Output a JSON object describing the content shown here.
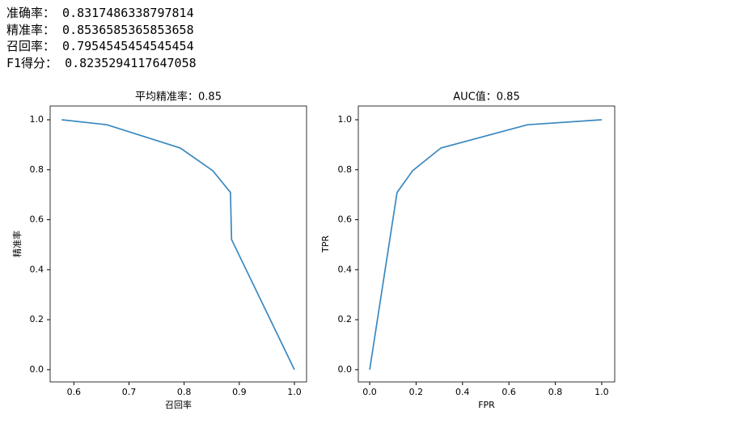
{
  "output_lines": [
    {
      "label": "准确率：",
      "value": "0.8317486338797814"
    },
    {
      "label": "精准率：",
      "value": "0.8536585365853658"
    },
    {
      "label": "召回率：",
      "value": "0.7954545454545454"
    },
    {
      "label": "F1得分：",
      "value": "0.8235294117647058"
    }
  ],
  "chart_data": [
    {
      "type": "line",
      "title": "平均精准率：0.85",
      "x_label": "召回率",
      "y_label": "精准率",
      "x": [
        0.578,
        0.66,
        0.793,
        0.852,
        0.884,
        0.886,
        1.0
      ],
      "series": [
        {
          "color": "#3a88c0",
          "values": [
            1.0,
            0.98,
            0.887,
            0.796,
            0.709,
            0.521,
            0.0
          ]
        }
      ],
      "xlim": [
        0.557,
        1.022
      ],
      "ylim": [
        -0.049,
        1.055
      ],
      "xticks": [
        0.6,
        0.7,
        0.8,
        0.9,
        {
          "value": 1,
          "label": "1.0"
        }
      ],
      "yticks": [
        {
          "value": 0,
          "label": "0.0"
        },
        0.2,
        0.4,
        0.6,
        0.8,
        {
          "value": 1,
          "label": "1.0"
        }
      ]
    },
    {
      "type": "line",
      "title": "AUC值：0.85",
      "x_label": "FPR",
      "y_label": "TPR",
      "x": [
        0,
        0.118,
        0.185,
        0.307,
        0.68,
        1.0
      ],
      "series": [
        {
          "color": "#3a88c0",
          "values": [
            0.0,
            0.709,
            0.796,
            0.887,
            0.98,
            1.0
          ]
        }
      ],
      "xlim": [
        -0.049,
        1.056
      ],
      "ylim": [
        -0.049,
        1.055
      ],
      "xticks": [
        {
          "value": 0,
          "label": "0.0"
        },
        0.2,
        0.4,
        0.6,
        0.8,
        {
          "value": 1,
          "label": "1.0"
        }
      ],
      "yticks": [
        {
          "value": 0,
          "label": "0.0"
        },
        0.2,
        0.4,
        0.6,
        0.8,
        {
          "value": 1,
          "label": "1.0"
        }
      ]
    }
  ]
}
